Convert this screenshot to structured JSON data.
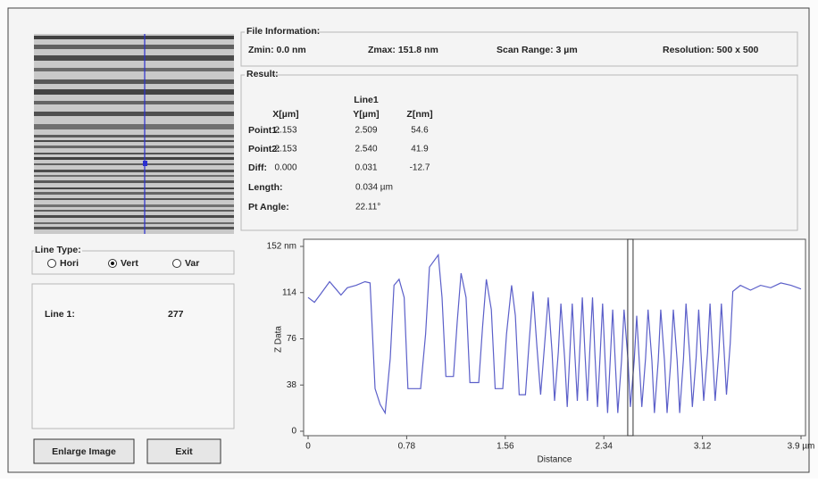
{
  "file_information": {
    "title": "File Information:",
    "zmin": "Zmin: 0.0 nm",
    "zmax": "Zmax: 151.8 nm",
    "scan_range": "Scan Range: 3 µm",
    "resolution": "Resolution: 500 x 500"
  },
  "result": {
    "title": "Result:",
    "column_group": "Line1",
    "columns": [
      "X[µm]",
      "Y[µm]",
      "Z[nm]"
    ],
    "rows": [
      [
        "Point1:",
        "2.153",
        "2.509",
        "54.6"
      ],
      [
        "Point2:",
        "2.153",
        "2.540",
        "41.9"
      ],
      [
        "Diff:",
        "0.000",
        "0.031",
        "-12.7"
      ]
    ],
    "length": {
      "label": "Length:",
      "value": "0.034 µm"
    },
    "pt_angle": {
      "label": "Pt Angle:",
      "value": "22.11°"
    }
  },
  "line_type": {
    "title": "Line Type:",
    "options": [
      "Hori",
      "Vert",
      "Var"
    ],
    "selected_index": 1
  },
  "line_info": {
    "label": "Line 1:",
    "value": "277"
  },
  "buttons": [
    "Enlarge Image",
    "Exit"
  ],
  "chart_data": {
    "type": "line",
    "xlabel": "Distance",
    "ylabel": "Z Data",
    "color": "#5b5fc9",
    "x": [
      0,
      0.05,
      0.1,
      0.17,
      0.22,
      0.26,
      0.31,
      0.38,
      0.45,
      0.49,
      0.53,
      0.57,
      0.61,
      0.65,
      0.68,
      0.72,
      0.76,
      0.79,
      0.89,
      0.93,
      0.96,
      1.03,
      1.06,
      1.09,
      1.15,
      1.18,
      1.21,
      1.25,
      1.28,
      1.35,
      1.38,
      1.41,
      1.45,
      1.48,
      1.54,
      1.57,
      1.61,
      1.64,
      1.67,
      1.72,
      1.75,
      1.78,
      1.81,
      1.84,
      1.87,
      1.9,
      1.93,
      1.95,
      1.98,
      2.0,
      2.03,
      2.05,
      2.07,
      2.09,
      2.11,
      2.13,
      2.15,
      2.17,
      2.19,
      2.21,
      2.23,
      2.25,
      2.27,
      2.29,
      2.31,
      2.33,
      2.35,
      2.37,
      2.39,
      2.41,
      2.43,
      2.45,
      2.48,
      2.5,
      2.53,
      2.55,
      2.58,
      2.6,
      2.62,
      2.64,
      2.67,
      2.69,
      2.72,
      2.74,
      2.77,
      2.79,
      2.82,
      2.84,
      2.87,
      2.89,
      2.92,
      2.94,
      2.97,
      2.99,
      3.02,
      3.04,
      3.07,
      3.09,
      3.11,
      3.13,
      3.16,
      3.18,
      3.2,
      3.22,
      3.25,
      3.27,
      3.29,
      3.31,
      3.34,
      3.36,
      3.42,
      3.5,
      3.58,
      3.66,
      3.74,
      3.82,
      3.9
    ],
    "values": [
      110,
      106,
      113,
      123,
      117,
      112,
      118,
      120,
      123,
      122,
      35,
      22,
      15,
      60,
      120,
      125,
      110,
      35,
      35,
      80,
      135,
      145,
      110,
      45,
      45,
      90,
      130,
      110,
      40,
      40,
      85,
      125,
      100,
      35,
      35,
      80,
      120,
      95,
      30,
      30,
      75,
      115,
      70,
      30,
      70,
      110,
      65,
      25,
      65,
      105,
      60,
      20,
      62,
      105,
      65,
      25,
      68,
      110,
      65,
      25,
      68,
      110,
      62,
      20,
      62,
      105,
      58,
      15,
      58,
      100,
      58,
      15,
      58,
      100,
      60,
      20,
      58,
      95,
      58,
      20,
      60,
      100,
      58,
      15,
      58,
      100,
      58,
      15,
      58,
      100,
      58,
      15,
      60,
      105,
      62,
      20,
      60,
      100,
      62,
      25,
      65,
      105,
      65,
      25,
      65,
      105,
      68,
      30,
      72,
      115,
      120,
      116,
      120,
      118,
      122,
      120,
      117
    ],
    "xlim": [
      0,
      3.9
    ],
    "ylim": [
      0,
      152
    ],
    "xticks": [
      0,
      0.78,
      1.56,
      2.34,
      3.12,
      {
        "value": 3.9,
        "label": "3.9 µm"
      }
    ],
    "yticks": [
      0,
      38,
      76,
      114,
      {
        "value": 152,
        "label": "152 nm"
      }
    ],
    "cursor_x": 2.55
  }
}
